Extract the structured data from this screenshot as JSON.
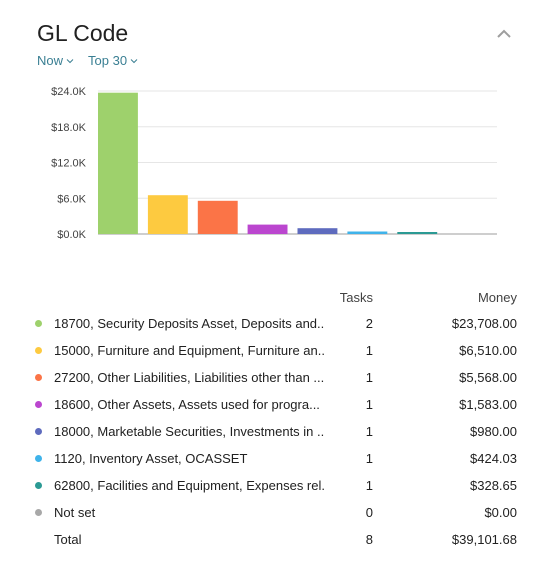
{
  "widget": {
    "title": "GL Code",
    "filters": [
      {
        "label": "Now"
      },
      {
        "label": "Top 30"
      }
    ]
  },
  "table": {
    "headers": {
      "tasks": "Tasks",
      "money": "Money"
    },
    "rows": [
      {
        "label": "18700, Security Deposits Asset, Deposits and...",
        "tasks": "2",
        "money": "$23,708.00",
        "color": "#9ed16c"
      },
      {
        "label": "15000, Furniture and Equipment, Furniture an...",
        "tasks": "1",
        "money": "$6,510.00",
        "color": "#fdca40"
      },
      {
        "label": "27200, Other Liabilities, Liabilities other than ...",
        "tasks": "1",
        "money": "$5,568.00",
        "color": "#fb7447"
      },
      {
        "label": "18600, Other Assets, Assets used for progra...",
        "tasks": "1",
        "money": "$1,583.00",
        "color": "#bb46cf"
      },
      {
        "label": "18000, Marketable Securities, Investments in ...",
        "tasks": "1",
        "money": "$980.00",
        "color": "#5e6bbe"
      },
      {
        "label": "1120, Inventory Asset, OCASSET",
        "tasks": "1",
        "money": "$424.03",
        "color": "#3fb3ea"
      },
      {
        "label": "62800, Facilities and Equipment, Expenses rel...",
        "tasks": "1",
        "money": "$328.65",
        "color": "#2b9a94"
      },
      {
        "label": "Not set",
        "tasks": "0",
        "money": "$0.00",
        "color": "#a8a8a8"
      },
      {
        "label": "Total",
        "tasks": "8",
        "money": "$39,101.68",
        "color": ""
      }
    ]
  },
  "chart_data": {
    "type": "bar",
    "categories": [
      "18700",
      "15000",
      "27200",
      "18600",
      "18000",
      "1120",
      "62800",
      "Not set"
    ],
    "values": [
      23708.0,
      6510.0,
      5568.0,
      1583.0,
      980.0,
      424.03,
      328.65,
      0
    ],
    "colors": [
      "#9ed16c",
      "#fdca40",
      "#fb7447",
      "#bb46cf",
      "#5e6bbe",
      "#3fb3ea",
      "#2b9a94",
      "#a8a8a8"
    ],
    "yticks": [
      0,
      6000,
      12000,
      18000,
      24000
    ],
    "ytick_labels": [
      "$0.0K",
      "$6.0K",
      "$12.0K",
      "$18.0K",
      "$24.0K"
    ],
    "ylim": [
      0,
      24000
    ],
    "grid": true
  }
}
